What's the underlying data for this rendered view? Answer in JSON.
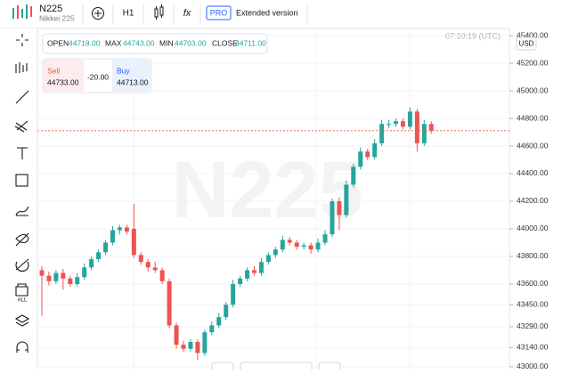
{
  "header": {
    "symbol": "N225",
    "name": "Nikkei 225",
    "timeframe": "H1",
    "formula_icon": "fx",
    "pro_badge": "PRO",
    "extended": "Extended version"
  },
  "toolbar": {
    "all_label": "ALL"
  },
  "ohlc": {
    "open_label": "OPEN",
    "open": "44718.00",
    "max_label": "MAX",
    "max": "44743.00",
    "min_label": "MIN",
    "min": "44703.00",
    "close_label": "CLOSE",
    "close": "44711.00"
  },
  "trade": {
    "sell_label": "Sell",
    "sell": "44733.00",
    "spread": "-20.00",
    "buy_label": "Buy",
    "buy": "44713.00"
  },
  "clock": "07:10:19 (UTC)",
  "currency": "USD",
  "chart_data": {
    "type": "candlestick",
    "watermark": "N225",
    "up_color": "#26a69a",
    "down_color": "#ef5350",
    "grid": true,
    "current_price": 44711,
    "ylim": [
      42980,
      45452
    ],
    "yticks": [
      {
        "value": 45400,
        "label": "45400.00"
      },
      {
        "value": 45200,
        "label": "45200.00"
      },
      {
        "value": 45000,
        "label": "45000.00"
      },
      {
        "value": 44800,
        "label": "44800.00"
      },
      {
        "value": 44600,
        "label": "44600.00"
      },
      {
        "value": 44400,
        "label": "44400.00"
      },
      {
        "value": 44200,
        "label": "44200.00"
      },
      {
        "value": 44000,
        "label": "44000.00"
      },
      {
        "value": 43800,
        "label": "43800.00"
      },
      {
        "value": 43600,
        "label": "43600.00"
      },
      {
        "value": 43450,
        "label": "43450.00"
      },
      {
        "value": 43290,
        "label": "43290.00"
      },
      {
        "value": 43140,
        "label": "43140.00"
      },
      {
        "value": 43000,
        "label": "43000.00"
      }
    ],
    "open": [
      43700,
      43660,
      43620,
      43680,
      43640,
      43600,
      43650,
      43720,
      43780,
      43830,
      43900,
      43990,
      44010,
      44000,
      43810,
      43760,
      43720,
      43700,
      43620,
      43300,
      43160,
      43130,
      43180,
      43100,
      43250,
      43300,
      43360,
      43450,
      43600,
      43640,
      43700,
      43680,
      43760,
      43810,
      43850,
      43920,
      43900,
      43870,
      43880,
      43850,
      43900,
      43960,
      44200,
      44100,
      44320,
      44450,
      44560,
      44520,
      44620,
      44760,
      44760,
      44780,
      44740,
      44850,
      44620,
      44760
    ],
    "high": [
      43730,
      43690,
      43700,
      43710,
      43660,
      43680,
      43750,
      43800,
      43850,
      43920,
      44020,
      44030,
      44030,
      44180,
      43830,
      43780,
      43760,
      43720,
      43640,
      43320,
      43190,
      43200,
      43200,
      43270,
      43330,
      43390,
      43470,
      43630,
      43660,
      43720,
      43730,
      43790,
      43830,
      43870,
      43950,
      43940,
      43920,
      43900,
      43900,
      43930,
      43990,
      44220,
      44230,
      44350,
      44470,
      44590,
      44580,
      44650,
      44790,
      44790,
      44800,
      44800,
      44880,
      44870,
      44790,
      44780
    ],
    "low": [
      43370,
      43590,
      43600,
      43560,
      43580,
      43580,
      43630,
      43700,
      43760,
      43810,
      43880,
      43960,
      43960,
      43790,
      43740,
      43690,
      43680,
      43600,
      43280,
      43130,
      43110,
      43110,
      43050,
      43080,
      43230,
      43280,
      43340,
      43430,
      43580,
      43620,
      43660,
      43660,
      43740,
      43790,
      43830,
      43880,
      43850,
      43850,
      43820,
      43830,
      43880,
      43940,
      43990,
      44080,
      44300,
      44430,
      44500,
      44500,
      44600,
      44730,
      44740,
      44720,
      44720,
      44560,
      44600,
      44690
    ],
    "close": [
      43660,
      43620,
      43680,
      43640,
      43600,
      43650,
      43720,
      43780,
      43830,
      43900,
      43990,
      44010,
      43980,
      43810,
      43760,
      43720,
      43700,
      43620,
      43300,
      43160,
      43130,
      43180,
      43100,
      43250,
      43300,
      43360,
      43450,
      43600,
      43640,
      43700,
      43680,
      43760,
      43810,
      43850,
      43920,
      43900,
      43870,
      43880,
      43850,
      43900,
      43960,
      44200,
      44100,
      44320,
      44450,
      44560,
      44520,
      44620,
      44760,
      44760,
      44780,
      44740,
      44850,
      44620,
      44760,
      44711
    ]
  }
}
